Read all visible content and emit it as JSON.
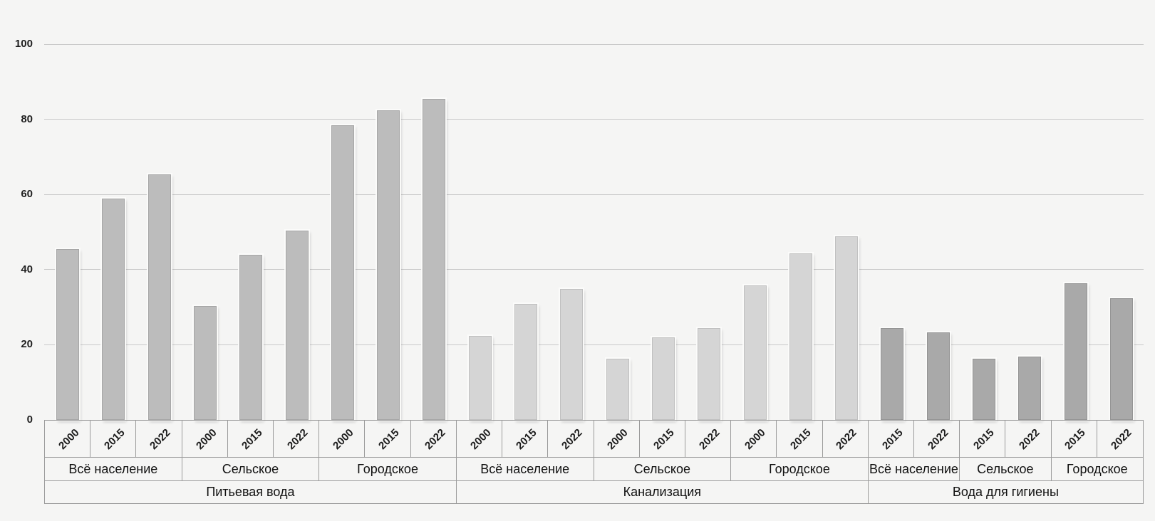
{
  "chart_data": {
    "type": "bar",
    "title": "",
    "xlabel": "",
    "ylabel": "",
    "ylim": [
      0,
      100
    ],
    "yticks": [
      0,
      20,
      40,
      60,
      80,
      100
    ],
    "grid": true,
    "legend": false,
    "unit": "percent",
    "sections": [
      {
        "label": "Питьевая вода",
        "bar_color": "#bcbcbc",
        "bar_border": "#a6a6a6",
        "groups": [
          {
            "label": "Всё население",
            "years": [
              "2000",
              "2015",
              "2022"
            ],
            "values": [
              45,
              58.5,
              65
            ]
          },
          {
            "label": "Сельское",
            "years": [
              "2000",
              "2015",
              "2022"
            ],
            "values": [
              30,
              43.5,
              50
            ]
          },
          {
            "label": "Городское",
            "years": [
              "2000",
              "2015",
              "2022"
            ],
            "values": [
              78,
              82,
              85
            ]
          }
        ]
      },
      {
        "label": "Канализация",
        "bar_color": "#d5d5d5",
        "bar_border": "#c0c0c0",
        "groups": [
          {
            "label": "Всё население",
            "years": [
              "2000",
              "2015",
              "2022"
            ],
            "values": [
              22,
              30.5,
              34.5
            ]
          },
          {
            "label": "Сельское",
            "years": [
              "2000",
              "2015",
              "2022"
            ],
            "values": [
              16,
              21.5,
              24
            ]
          },
          {
            "label": "Городское",
            "years": [
              "2000",
              "2015",
              "2022"
            ],
            "values": [
              35.5,
              44,
              48.5
            ]
          }
        ]
      },
      {
        "label": "Вода для гигиены",
        "bar_color": "#a9a9a9",
        "bar_border": "#949494",
        "groups": [
          {
            "label": "Всё население",
            "years": [
              "2015",
              "2022"
            ],
            "values": [
              24,
              23
            ]
          },
          {
            "label": "Сельское",
            "years": [
              "2015",
              "2022"
            ],
            "values": [
              16,
              16.5
            ]
          },
          {
            "label": "Городское",
            "years": [
              "2015",
              "2022"
            ],
            "values": [
              36,
              32
            ]
          }
        ]
      }
    ],
    "colors": {
      "background": "#f5f5f4",
      "gridline": "#c9c9c9",
      "table_border": "#9b9b9b",
      "text": "#1c1c1c"
    }
  }
}
